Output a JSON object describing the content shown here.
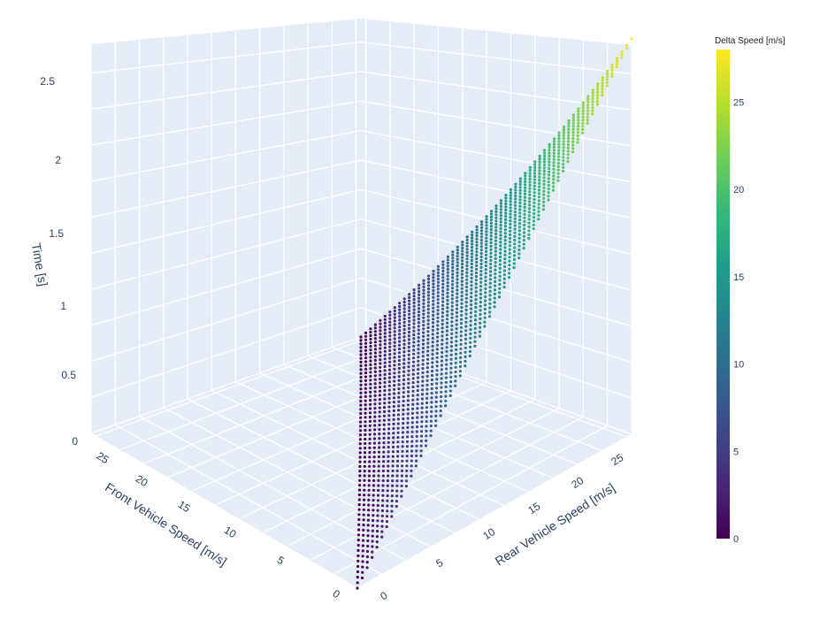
{
  "chart_data": {
    "type": "scatter3d",
    "title": "",
    "x_axis": {
      "label": "Rear Vehicle Speed [m/s]",
      "range": [
        0,
        28
      ],
      "ticks": [
        0,
        5,
        10,
        15,
        20,
        25
      ]
    },
    "y_axis": {
      "label": "Front Vehicle Speed [m/s]",
      "range": [
        0,
        28
      ],
      "ticks": [
        0,
        5,
        10,
        15,
        20,
        25
      ]
    },
    "z_axis": {
      "label": "Time [s]",
      "range": [
        0,
        2.7
      ],
      "ticks": [
        0,
        0.5,
        1,
        1.5,
        2,
        2.5
      ]
    },
    "colorbar": {
      "title": "Delta Speed [m/s]",
      "range": [
        0,
        28
      ],
      "ticks": [
        0,
        5,
        10,
        15,
        20,
        25
      ],
      "colorscale": "Viridis",
      "colors": [
        "#440154",
        "#482878",
        "#3e4989",
        "#31688e",
        "#26828e",
        "#1f9e89",
        "#35b779",
        "#6ece58",
        "#b5de2b",
        "#fde725"
      ]
    },
    "grid": true,
    "scene_background": "#e5ecf6",
    "gridline_color": "#ffffff",
    "relationship": "points defined for rear speed >= front speed; delta speed = rear - front; time rises with delta speed",
    "sample_points": [
      {
        "rear": 0,
        "front": 0,
        "delta": 0,
        "time": 0
      },
      {
        "rear": 5,
        "front": 0,
        "delta": 5,
        "time": 0.5
      },
      {
        "rear": 10,
        "front": 0,
        "delta": 10,
        "time": 1.0
      },
      {
        "rear": 15,
        "front": 0,
        "delta": 15,
        "time": 1.45
      },
      {
        "rear": 20,
        "front": 0,
        "delta": 20,
        "time": 1.95
      },
      {
        "rear": 25,
        "front": 0,
        "delta": 25,
        "time": 2.45
      },
      {
        "rear": 28,
        "front": 0,
        "delta": 28,
        "time": 2.7
      },
      {
        "rear": 28,
        "front": 28,
        "delta": 0,
        "time": 0
      },
      {
        "rear": 20,
        "front": 10,
        "delta": 10,
        "time": 1.0
      }
    ],
    "grid_step": 0.5
  }
}
